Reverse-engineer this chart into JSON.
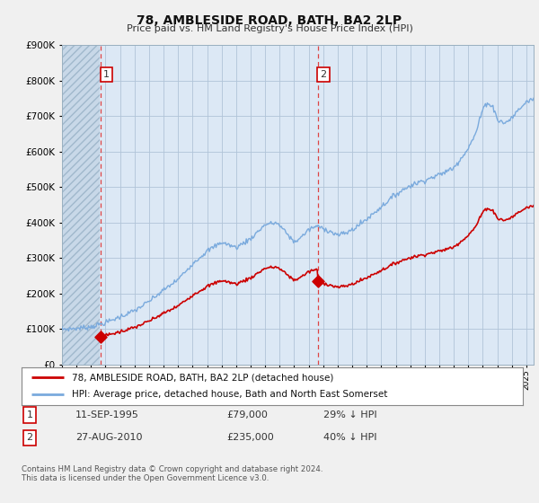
{
  "title": "78, AMBLESIDE ROAD, BATH, BA2 2LP",
  "subtitle": "Price paid vs. HM Land Registry's House Price Index (HPI)",
  "ylim": [
    0,
    900000
  ],
  "yticks": [
    0,
    100000,
    200000,
    300000,
    400000,
    500000,
    600000,
    700000,
    800000,
    900000
  ],
  "xlim_start": 1993.0,
  "xlim_end": 2025.5,
  "hatch_region_end_year": 1995.58,
  "sale1_date": 1995.69,
  "sale1_price": 79000,
  "sale2_date": 2010.65,
  "sale2_price": 235000,
  "legend_line1": "78, AMBLESIDE ROAD, BATH, BA2 2LP (detached house)",
  "legend_line2": "HPI: Average price, detached house, Bath and North East Somerset",
  "table_row1": [
    "1",
    "11-SEP-1995",
    "£79,000",
    "29% ↓ HPI"
  ],
  "table_row2": [
    "2",
    "27-AUG-2010",
    "£235,000",
    "40% ↓ HPI"
  ],
  "footnote": "Contains HM Land Registry data © Crown copyright and database right 2024.\nThis data is licensed under the Open Government Licence v3.0.",
  "sale_color": "#cc0000",
  "hpi_color": "#7aaadd",
  "background_color": "#f0f0f0",
  "plot_bg_color": "#dce8f5",
  "hatch_color": "#c8d8e8",
  "grid_color": "#b0c4d8"
}
